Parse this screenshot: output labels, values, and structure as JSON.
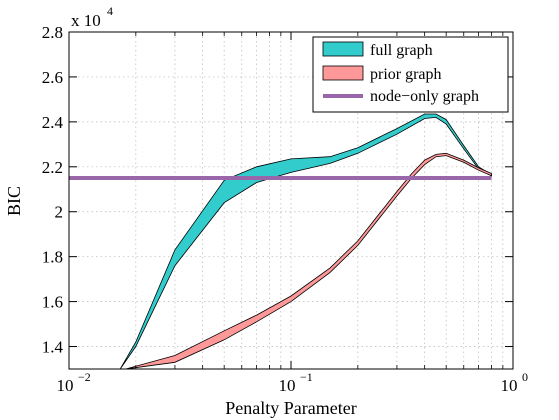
{
  "chart_data": {
    "type": "area",
    "xlabel": "Penalty Parameter",
    "ylabel": "BIC",
    "x_scale": "log",
    "xlim": [
      0.01,
      1
    ],
    "ylim": [
      13000,
      28000
    ],
    "y_multiplier_label": "x 10",
    "y_multiplier_exponent": "4",
    "grid": true,
    "legend_position": "top-right",
    "x_ticks": [
      {
        "value": 0.01,
        "base": "10",
        "exp": "−2"
      },
      {
        "value": 0.1,
        "base": "10",
        "exp": "−1"
      },
      {
        "value": 1,
        "base": "10",
        "exp": "0"
      }
    ],
    "y_ticks": [
      {
        "value": 14000,
        "label": "1.4"
      },
      {
        "value": 16000,
        "label": "1.6"
      },
      {
        "value": 18000,
        "label": "1.8"
      },
      {
        "value": 20000,
        "label": "2"
      },
      {
        "value": 22000,
        "label": "2.2"
      },
      {
        "value": 24000,
        "label": "2.4"
      },
      {
        "value": 26000,
        "label": "2.6"
      },
      {
        "value": 28000,
        "label": "2.8"
      }
    ],
    "series": [
      {
        "name": "full graph",
        "kind": "band",
        "color": "#33cccc",
        "x": [
          0.017,
          0.02,
          0.03,
          0.05,
          0.07,
          0.1,
          0.15,
          0.2,
          0.3,
          0.4,
          0.45,
          0.5,
          0.6,
          0.7,
          0.8
        ],
        "lower": [
          12800,
          14000,
          17600,
          20400,
          21300,
          21750,
          22150,
          22600,
          23450,
          24150,
          24200,
          23900,
          22800,
          21900,
          21600
        ],
        "upper": [
          12800,
          14200,
          18300,
          21400,
          22000,
          22350,
          22450,
          22850,
          23700,
          24350,
          24350,
          24100,
          22950,
          22000,
          21650
        ]
      },
      {
        "name": "prior graph",
        "kind": "band",
        "color": "#ff9999",
        "x": [
          0.018,
          0.03,
          0.05,
          0.07,
          0.1,
          0.15,
          0.2,
          0.3,
          0.35,
          0.4,
          0.45,
          0.5,
          0.6,
          0.7,
          0.8
        ],
        "lower": [
          12800,
          13300,
          14300,
          15100,
          16000,
          17300,
          18500,
          20700,
          21500,
          22100,
          22450,
          22500,
          22200,
          21850,
          21600
        ],
        "upper": [
          12800,
          13600,
          14700,
          15400,
          16250,
          17500,
          18700,
          20900,
          21700,
          22300,
          22550,
          22600,
          22300,
          21950,
          21700
        ]
      },
      {
        "name": "node−only graph",
        "kind": "line",
        "color": "#9966aa",
        "x": [
          0.01,
          0.8
        ],
        "y": [
          21500,
          21500
        ]
      }
    ]
  }
}
